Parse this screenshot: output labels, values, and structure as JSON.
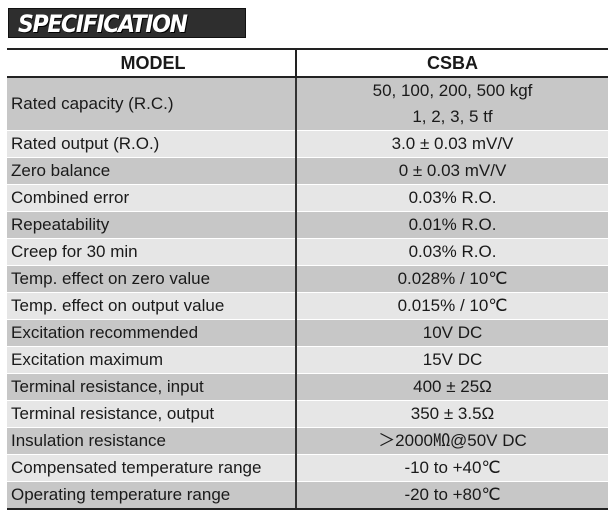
{
  "banner": {
    "title": "SPECIFICATION"
  },
  "table": {
    "header": {
      "label": "MODEL",
      "value": "CSBA"
    },
    "rows": [
      {
        "label": "Rated capacity (R.C.)",
        "value_line1": "50, 100, 200, 500 kgf",
        "value_line2": "1, 2, 3, 5 tf"
      },
      {
        "label": "Rated output (R.O.)",
        "value": "3.0 ± 0.03 mV/V"
      },
      {
        "label": "Zero balance",
        "value": "0 ± 0.03 mV/V"
      },
      {
        "label": "Combined error",
        "value": "0.03% R.O."
      },
      {
        "label": "Repeatability",
        "value": "0.01% R.O."
      },
      {
        "label": "Creep for 30 min",
        "value": "0.03% R.O."
      },
      {
        "label": "Temp. effect on zero value",
        "value": "0.028% / 10℃"
      },
      {
        "label": "Temp. effect on output value",
        "value": "0.015% / 10℃"
      },
      {
        "label": "Excitation recommended",
        "value": "10V DC"
      },
      {
        "label": "Excitation maximum",
        "value": "15V DC"
      },
      {
        "label": "Terminal resistance, input",
        "value": "400 ± 25Ω"
      },
      {
        "label": "Terminal resistance, output",
        "value": "350 ± 3.5Ω"
      },
      {
        "label": "Insulation resistance",
        "value": "＞2000㏁@50V DC"
      },
      {
        "label": "Compensated temperature range",
        "value": "-10 to +40℃"
      },
      {
        "label": "Operating temperature range",
        "value": "-20 to +80℃"
      }
    ]
  }
}
